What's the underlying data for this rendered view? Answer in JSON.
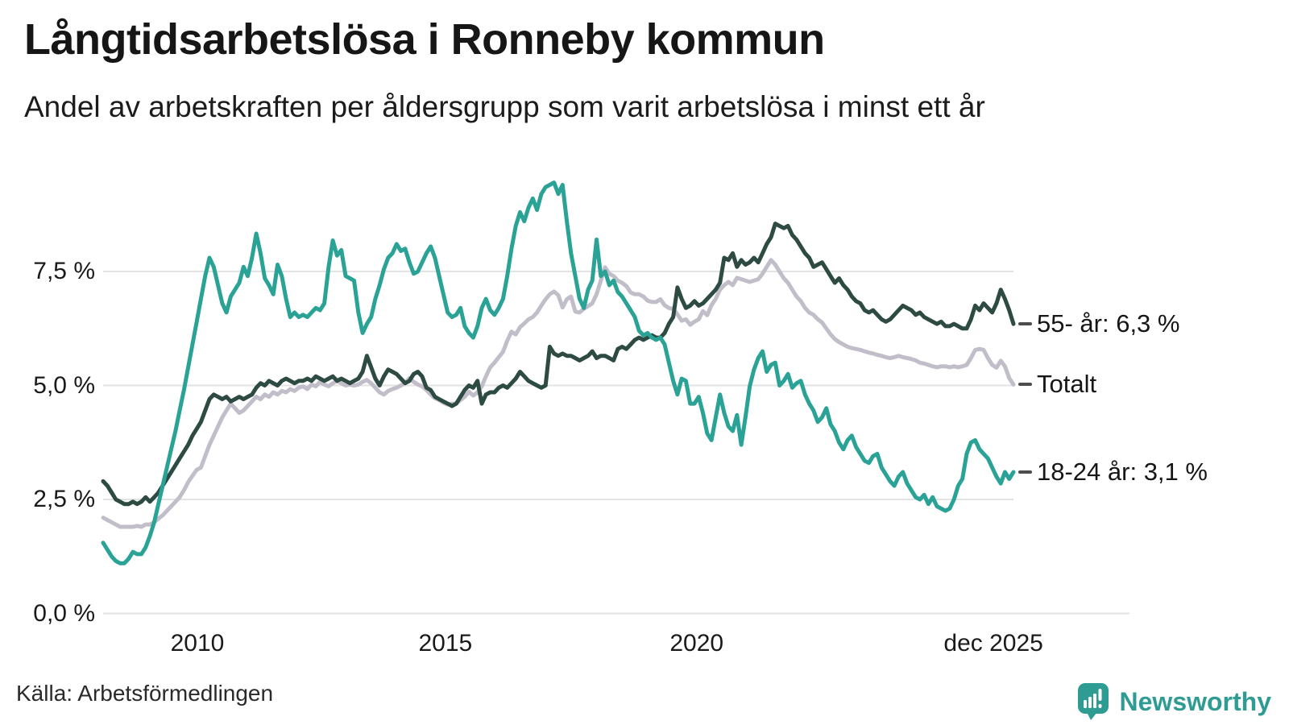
{
  "header": {
    "title": "Långtidsarbetslösa i Ronneby kommun",
    "subtitle": "Andel av arbetskraften per åldersgrupp som varit arbetslösa i minst ett år"
  },
  "footer": {
    "source": "Källa: Arbetsförmedlingen",
    "brand": "Newsworthy",
    "brand_color": "#2e9c92"
  },
  "chart_data": {
    "type": "line",
    "unit": "percent",
    "x_start": "2008-02",
    "x_end": "2025-12",
    "x_frequency": "monthly",
    "grid": "horizontal",
    "legend_position": "line-end-right",
    "ylim": [
      0,
      9.6
    ],
    "y_ticks": [
      0,
      2.5,
      5,
      7.5
    ],
    "y_tick_labels": [
      "0,0 %",
      "2,5 %",
      "5,0 %",
      "7,5 %"
    ],
    "x_tick_labels": [
      "2010",
      "2015",
      "2020",
      "dec 2025"
    ],
    "grid_color": "#e3e3e3",
    "series": [
      {
        "name": "Totalt",
        "end_label": "Totalt",
        "end_value": 5.0,
        "color": "#c2bec9",
        "values": [
          2.1,
          2.05,
          2.0,
          1.95,
          1.9,
          1.9,
          1.9,
          1.9,
          1.92,
          1.9,
          1.95,
          1.95,
          2.0,
          2.08,
          2.15,
          2.25,
          2.35,
          2.45,
          2.55,
          2.7,
          2.88,
          3.02,
          3.15,
          3.2,
          3.45,
          3.7,
          3.9,
          4.1,
          4.3,
          4.45,
          4.6,
          4.5,
          4.4,
          4.45,
          4.55,
          4.65,
          4.75,
          4.7,
          4.8,
          4.75,
          4.85,
          4.8,
          4.88,
          4.85,
          4.92,
          4.88,
          4.95,
          4.98,
          4.92,
          5.02,
          4.98,
          5.08,
          5.02,
          4.98,
          5.05,
          5.1,
          5.05,
          5.0,
          5.02,
          5.0,
          5.02,
          5.08,
          5.12,
          5.05,
          4.95,
          4.85,
          4.8,
          4.88,
          4.92,
          4.95,
          5.0,
          5.05,
          5.16,
          5.08,
          5.02,
          4.98,
          4.9,
          4.8,
          4.72,
          4.68,
          4.62,
          4.58,
          4.6,
          4.6,
          4.68,
          4.75,
          4.86,
          4.78,
          4.85,
          4.98,
          5.2,
          5.4,
          5.5,
          5.62,
          5.74,
          5.98,
          6.18,
          6.12,
          6.28,
          6.36,
          6.45,
          6.5,
          6.6,
          6.75,
          6.89,
          7.0,
          7.06,
          6.98,
          6.71,
          6.89,
          6.95,
          6.62,
          6.6,
          6.68,
          6.74,
          6.8,
          7.0,
          7.3,
          7.59,
          7.45,
          7.4,
          7.3,
          7.25,
          7.18,
          7.04,
          7.0,
          7.0,
          6.95,
          6.86,
          6.83,
          6.83,
          6.89,
          6.76,
          6.7,
          6.68,
          6.56,
          6.42,
          6.45,
          6.33,
          6.4,
          6.45,
          6.63,
          6.54,
          6.76,
          6.9,
          7.1,
          7.2,
          7.27,
          7.2,
          7.36,
          7.33,
          7.3,
          7.27,
          7.3,
          7.33,
          7.45,
          7.6,
          7.75,
          7.65,
          7.5,
          7.35,
          7.25,
          7.1,
          6.95,
          6.85,
          6.7,
          6.6,
          6.55,
          6.45,
          6.38,
          6.25,
          6.12,
          6.02,
          5.95,
          5.9,
          5.85,
          5.82,
          5.8,
          5.78,
          5.75,
          5.72,
          5.7,
          5.67,
          5.65,
          5.62,
          5.6,
          5.62,
          5.65,
          5.62,
          5.6,
          5.58,
          5.55,
          5.5,
          5.48,
          5.45,
          5.42,
          5.4,
          5.42,
          5.42,
          5.4,
          5.42,
          5.4,
          5.42,
          5.45,
          5.6,
          5.78,
          5.8,
          5.78,
          5.6,
          5.45,
          5.39,
          5.54,
          5.42,
          5.16,
          5.02
        ]
      },
      {
        "name": "55- år",
        "end_label": "55- år: 6,3 %",
        "end_value": 6.3,
        "color": "#2d4b42",
        "values": [
          2.9,
          2.8,
          2.65,
          2.5,
          2.45,
          2.4,
          2.4,
          2.45,
          2.4,
          2.45,
          2.55,
          2.45,
          2.55,
          2.65,
          2.8,
          2.95,
          3.1,
          3.25,
          3.4,
          3.55,
          3.7,
          3.9,
          4.05,
          4.2,
          4.45,
          4.7,
          4.8,
          4.75,
          4.7,
          4.75,
          4.65,
          4.7,
          4.75,
          4.7,
          4.75,
          4.8,
          4.95,
          5.05,
          5.0,
          5.1,
          5.05,
          5.0,
          5.1,
          5.15,
          5.1,
          5.05,
          5.1,
          5.1,
          5.15,
          5.1,
          5.2,
          5.15,
          5.1,
          5.15,
          5.2,
          5.1,
          5.15,
          5.1,
          5.05,
          5.1,
          5.15,
          5.3,
          5.65,
          5.4,
          5.15,
          5.0,
          5.2,
          5.35,
          5.3,
          5.25,
          5.15,
          5.05,
          5.1,
          5.25,
          5.3,
          5.2,
          4.95,
          4.9,
          4.75,
          4.7,
          4.65,
          4.6,
          4.55,
          4.6,
          4.75,
          4.9,
          5.0,
          4.95,
          5.1,
          4.6,
          4.8,
          4.85,
          4.85,
          4.95,
          5.0,
          4.95,
          5.05,
          5.15,
          5.3,
          5.2,
          5.1,
          5.05,
          5.0,
          4.95,
          5.0,
          5.85,
          5.7,
          5.65,
          5.7,
          5.65,
          5.65,
          5.6,
          5.55,
          5.6,
          5.65,
          5.75,
          5.6,
          5.65,
          5.65,
          5.6,
          5.55,
          5.8,
          5.85,
          5.8,
          5.9,
          6.0,
          6.05,
          6.0,
          6.05,
          6.1,
          6.05,
          6.05,
          6.15,
          6.35,
          6.5,
          7.15,
          6.9,
          6.7,
          6.75,
          6.85,
          6.75,
          6.8,
          6.9,
          7.0,
          7.1,
          7.25,
          7.8,
          7.75,
          7.9,
          7.6,
          7.75,
          7.65,
          7.7,
          7.8,
          7.7,
          7.9,
          8.1,
          8.25,
          8.55,
          8.5,
          8.45,
          8.5,
          8.3,
          8.2,
          8.05,
          7.9,
          7.8,
          7.6,
          7.65,
          7.7,
          7.55,
          7.4,
          7.25,
          7.35,
          7.2,
          7.1,
          6.95,
          6.85,
          6.8,
          6.65,
          6.6,
          6.65,
          6.55,
          6.45,
          6.4,
          6.45,
          6.55,
          6.65,
          6.75,
          6.7,
          6.65,
          6.55,
          6.6,
          6.5,
          6.45,
          6.4,
          6.35,
          6.4,
          6.3,
          6.3,
          6.35,
          6.3,
          6.25,
          6.25,
          6.45,
          6.75,
          6.65,
          6.8,
          6.7,
          6.6,
          6.8,
          7.1,
          6.9,
          6.65,
          6.35
        ]
      },
      {
        "name": "18-24 år",
        "end_label": "18-24 år: 3,1 %",
        "end_value": 3.1,
        "color": "#2aa296",
        "values": [
          1.55,
          1.4,
          1.25,
          1.15,
          1.1,
          1.1,
          1.2,
          1.35,
          1.3,
          1.3,
          1.45,
          1.7,
          2.0,
          2.4,
          2.8,
          3.2,
          3.6,
          4.0,
          4.45,
          4.9,
          5.4,
          5.9,
          6.4,
          6.9,
          7.4,
          7.8,
          7.6,
          7.2,
          6.8,
          6.6,
          6.95,
          7.1,
          7.25,
          7.6,
          7.4,
          7.8,
          8.33,
          7.9,
          7.35,
          7.2,
          7.0,
          7.65,
          7.4,
          6.9,
          6.5,
          6.6,
          6.5,
          6.55,
          6.5,
          6.6,
          6.7,
          6.65,
          6.8,
          7.6,
          8.18,
          7.85,
          7.97,
          7.4,
          7.35,
          7.3,
          6.6,
          6.15,
          6.35,
          6.5,
          6.9,
          7.2,
          7.55,
          7.8,
          7.9,
          8.1,
          7.95,
          8.0,
          7.7,
          7.45,
          7.5,
          7.7,
          7.9,
          8.05,
          7.8,
          7.4,
          7.0,
          6.6,
          6.5,
          6.55,
          6.7,
          6.3,
          6.15,
          6.05,
          6.3,
          6.7,
          6.9,
          6.65,
          6.55,
          6.7,
          6.9,
          7.4,
          8.0,
          8.5,
          8.8,
          8.6,
          8.9,
          9.1,
          8.85,
          9.2,
          9.35,
          9.4,
          9.45,
          9.2,
          9.4,
          8.6,
          7.9,
          7.4,
          6.9,
          6.7,
          7.1,
          7.3,
          8.2,
          7.4,
          7.5,
          7.2,
          7.3,
          7.05,
          6.95,
          6.8,
          6.65,
          6.5,
          6.2,
          6.1,
          6.15,
          6.05,
          6.0,
          6.05,
          5.9,
          5.5,
          5.1,
          4.8,
          5.15,
          5.1,
          4.6,
          4.6,
          4.75,
          4.4,
          3.95,
          3.8,
          4.3,
          4.8,
          4.4,
          4.1,
          4.0,
          4.35,
          3.7,
          4.3,
          4.98,
          5.35,
          5.6,
          5.75,
          5.3,
          5.45,
          5.5,
          5.0,
          5.1,
          5.25,
          4.95,
          5.05,
          5.1,
          4.8,
          4.6,
          4.45,
          4.2,
          4.3,
          4.5,
          4.15,
          4.0,
          3.75,
          3.6,
          3.8,
          3.9,
          3.65,
          3.5,
          3.35,
          3.3,
          3.45,
          3.5,
          3.2,
          3.05,
          2.9,
          2.8,
          3.0,
          3.1,
          2.85,
          2.7,
          2.55,
          2.5,
          2.6,
          2.4,
          2.55,
          2.35,
          2.3,
          2.25,
          2.3,
          2.5,
          2.8,
          2.95,
          3.5,
          3.75,
          3.8,
          3.6,
          3.5,
          3.4,
          3.2,
          3.0,
          2.85,
          3.1,
          2.95,
          3.1
        ]
      }
    ]
  }
}
